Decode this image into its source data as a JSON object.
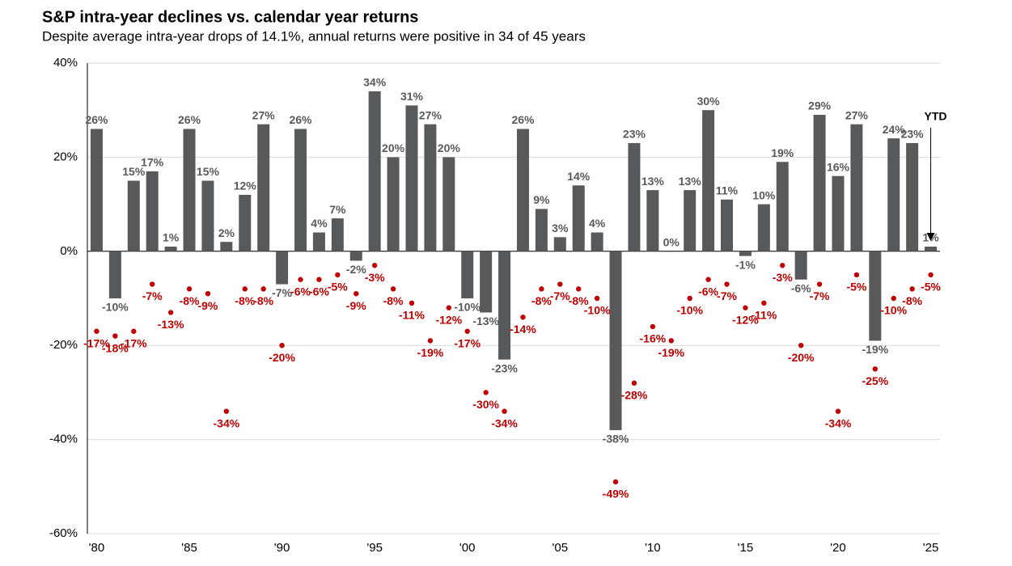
{
  "chart_data": {
    "type": "bar",
    "title": "S&P intra-year declines vs. calendar year returns",
    "subtitle": "Despite average intra-year drops of 14.1%, annual returns were positive in 34 of 45 years",
    "annotation": "YTD",
    "categories": [
      "'80",
      null,
      null,
      null,
      null,
      "'85",
      null,
      null,
      null,
      null,
      "'90",
      null,
      null,
      null,
      null,
      "'95",
      null,
      null,
      null,
      null,
      "'00",
      null,
      null,
      null,
      null,
      "'05",
      null,
      null,
      null,
      null,
      "'10",
      null,
      null,
      null,
      null,
      "'15",
      null,
      null,
      null,
      null,
      "'20",
      null,
      null,
      null,
      null,
      "'25"
    ],
    "series": [
      {
        "type": "bar",
        "color": "#58595b",
        "values": [
          26,
          -10,
          15,
          17,
          1,
          26,
          15,
          2,
          12,
          27,
          -7,
          26,
          4,
          7,
          -2,
          34,
          20,
          31,
          27,
          20,
          -10,
          -13,
          -23,
          26,
          9,
          3,
          14,
          4,
          -38,
          23,
          13,
          0,
          13,
          30,
          11,
          -1,
          10,
          19,
          -6,
          29,
          16,
          27,
          -19,
          24,
          23,
          1
        ],
        "value_labels": [
          "26%",
          "-10%",
          "15%",
          "17%",
          "1%",
          "26%",
          "15%",
          "2%",
          "12%",
          "27%",
          "-7%",
          "26%",
          "4%",
          "7%",
          "-2%",
          "34%",
          "20%",
          "31%",
          "27%",
          "20%",
          "-10%",
          "-13%",
          "-23%",
          "26%",
          "9%",
          "3%",
          "14%",
          "4%",
          "-38%",
          "23%",
          "13%",
          "0%",
          "13%",
          "30%",
          "11%",
          "-1%",
          "10%",
          "19%",
          "-6%",
          "29%",
          "16%",
          "27%",
          "-19%",
          "24%",
          "23%",
          "1%"
        ]
      },
      {
        "type": "scatter",
        "color": "#c00000",
        "values": [
          -17,
          -18,
          -17,
          -7,
          -13,
          -8,
          -9,
          -34,
          -8,
          -8,
          -20,
          -6,
          -6,
          -5,
          -9,
          -3,
          -8,
          -11,
          -19,
          -12,
          -17,
          -30,
          -34,
          -14,
          -8,
          -7,
          -8,
          -10,
          -49,
          -28,
          -16,
          -19,
          -10,
          -6,
          -7,
          -12,
          -11,
          -3,
          -20,
          -7,
          -34,
          -5,
          -25,
          -10,
          -8,
          -5
        ],
        "value_labels": [
          "-17%",
          "-18%",
          "-17%",
          "-7%",
          "-13%",
          "-8%",
          "-9%",
          "-34%",
          "-8%",
          "-8%",
          "-20%",
          "-6%",
          "-6%",
          "-5%",
          "-9%",
          "-3%",
          "-8%",
          "-11%",
          "-19%",
          "-12%",
          "-17%",
          "-30%",
          "-34%",
          "-14%",
          "-8%",
          "-7%",
          "-8%",
          "-10%",
          "-49%",
          "-28%",
          "-16%",
          "-19%",
          "-10%",
          "-6%",
          "-7%",
          "-12%",
          "-11%",
          "-3%",
          "-20%",
          "-7%",
          "-34%",
          "-5%",
          "-25%",
          "-10%",
          "-8%",
          "-5%"
        ]
      }
    ],
    "ylim": [
      -60,
      40
    ],
    "yticks": [
      {
        "value": -60,
        "label": "-60%"
      },
      {
        "value": -40,
        "label": "-40%"
      },
      {
        "value": -20,
        "label": "-20%"
      },
      {
        "value": 0,
        "label": "0%"
      },
      {
        "value": 20,
        "label": "20%"
      },
      {
        "value": 40,
        "label": "40%"
      }
    ],
    "grid": true
  }
}
